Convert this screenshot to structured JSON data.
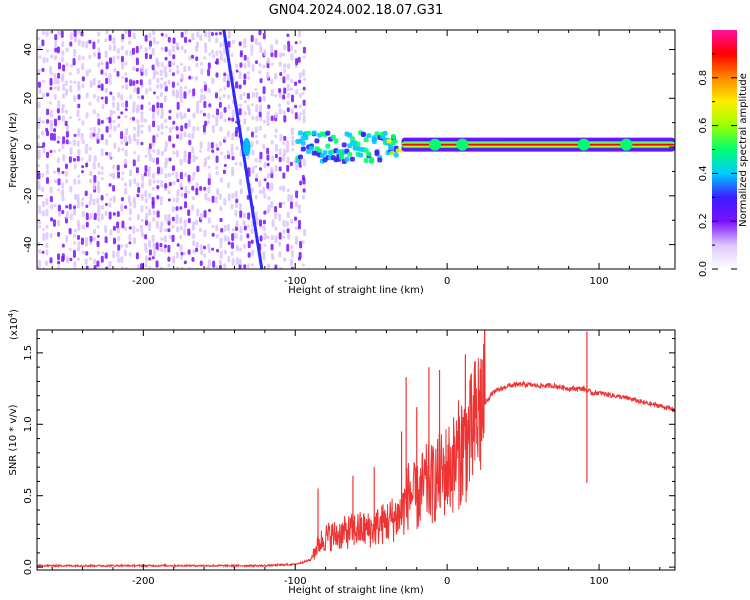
{
  "title": "GN04.2024.002.18.07.G31",
  "chart_data": [
    {
      "type": "heatmap",
      "xlabel": "Height of straight line (km)",
      "ylabel": "Frequency (Hz)",
      "xlim": [
        -270,
        150
      ],
      "ylim": [
        -50,
        48
      ],
      "xticks": [
        -200,
        -100,
        0,
        100
      ],
      "yticks": [
        -40,
        -20,
        0,
        20,
        40
      ],
      "x_tick_labels": [
        "-200",
        "-100",
        "0",
        "100"
      ],
      "y_tick_labels": [
        "-40",
        "-20",
        "0",
        "20",
        "40"
      ],
      "colorbar": {
        "label": "Normalized spectral amplitude",
        "range": [
          0,
          1
        ],
        "ticks": [
          0.0,
          0.2,
          0.4,
          0.6,
          0.8
        ],
        "tick_labels": [
          "0.0",
          "0.2",
          "0.4",
          "0.6",
          "0.8"
        ],
        "colors": [
          "#ffffff",
          "#dcc6ff",
          "#7a10ff",
          "#3b1cff",
          "#00ccff",
          "#00ff70",
          "#9cff00",
          "#ffee00",
          "#ff8800",
          "#ff0000",
          "#ff10a0"
        ]
      },
      "features": {
        "noise_region_x": [
          -270,
          -95
        ],
        "band_center_frequency": 1,
        "dense_band_x": [
          -100,
          -35
        ],
        "strong_band_x": [
          -30,
          150
        ],
        "diagonal_streak": {
          "x": [
            -147,
            -122
          ],
          "y": [
            48,
            -50
          ]
        }
      }
    },
    {
      "type": "line",
      "xlabel": "Height of straight line (km)",
      "ylabel": "SNR (10 * v/v)",
      "y_multiplier_label": "(x10",
      "y_multiplier_exponent": "4",
      "y_multiplier_close": ")",
      "xlim": [
        -270,
        150
      ],
      "ylim": [
        -0.02,
        1.66
      ],
      "xticks": [
        -200,
        -100,
        0,
        100
      ],
      "yticks": [
        0.0,
        0.5,
        1.0,
        1.5
      ],
      "x_tick_labels": [
        "-200",
        "-100",
        "0",
        "100"
      ],
      "y_tick_labels": [
        "0.0",
        "0.5",
        "1.0",
        "1.5"
      ],
      "color": "#ee3333",
      "series_profile": {
        "x": [
          -270,
          -200,
          -120,
          -100,
          -90,
          -85,
          -80,
          -70,
          -60,
          -50,
          -40,
          -30,
          -25,
          -20,
          -15,
          -10,
          -5,
          0,
          5,
          10,
          15,
          20,
          25,
          30,
          40,
          50,
          60,
          70,
          80,
          90,
          95,
          100,
          110,
          120,
          130,
          140,
          150
        ],
        "y": [
          0.01,
          0.01,
          0.01,
          0.02,
          0.05,
          0.15,
          0.2,
          0.22,
          0.25,
          0.25,
          0.3,
          0.35,
          0.5,
          0.45,
          0.55,
          0.55,
          0.6,
          0.65,
          0.7,
          0.8,
          0.85,
          1.0,
          1.15,
          1.22,
          1.27,
          1.28,
          1.27,
          1.27,
          1.25,
          1.25,
          1.22,
          1.22,
          1.2,
          1.18,
          1.15,
          1.13,
          1.1
        ]
      },
      "peaks": [
        {
          "x": -85,
          "y": 0.55
        },
        {
          "x": -62,
          "y": 0.64
        },
        {
          "x": -48,
          "y": 0.7
        },
        {
          "x": -30,
          "y": 0.95
        },
        {
          "x": -27,
          "y": 1.33
        },
        {
          "x": -20,
          "y": 1.12
        },
        {
          "x": -12,
          "y": 1.4
        },
        {
          "x": -5,
          "y": 1.38
        },
        {
          "x": 12,
          "y": 1.49
        },
        {
          "x": 24,
          "y": 1.35
        },
        {
          "x": 92,
          "y": 1.65
        }
      ],
      "dips": [
        {
          "x": 92,
          "y": 0.59
        }
      ]
    }
  ]
}
